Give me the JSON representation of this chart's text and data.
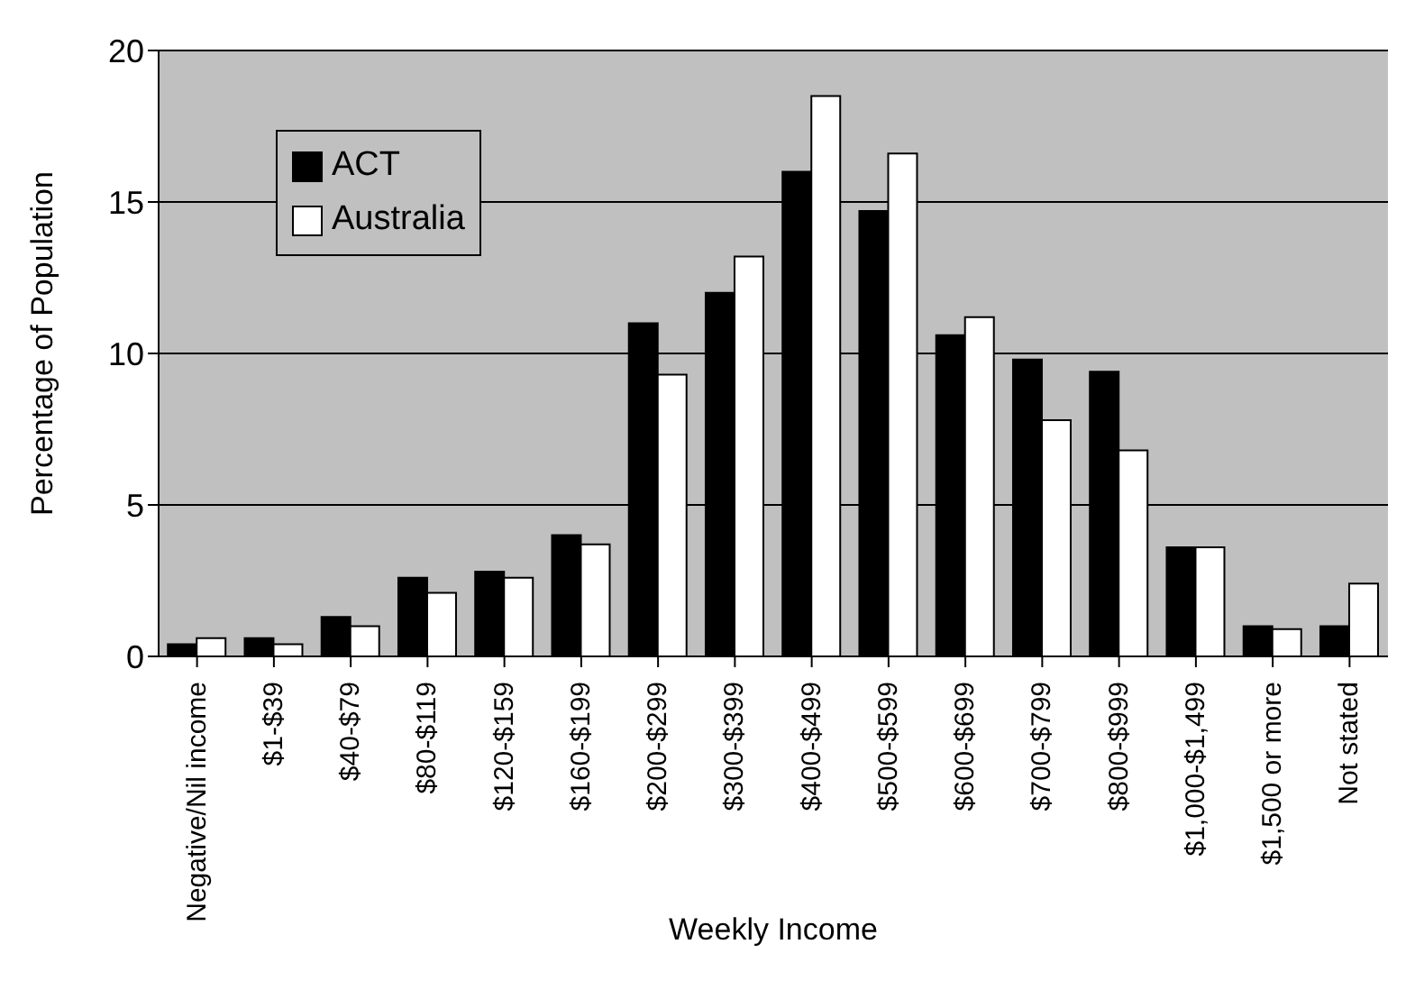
{
  "chart_data": {
    "type": "bar",
    "xlabel": "Weekly Income",
    "ylabel": "Percentage of Population",
    "categories": [
      "Negative/Nil income",
      "$1-$39",
      "$40-$79",
      "$80-$119",
      "$120-$159",
      "$160-$199",
      "$200-$299",
      "$300-$399",
      "$400-$499",
      "$500-$599",
      "$600-$699",
      "$700-$799",
      "$800-$999",
      "$1,000-$1,499",
      "$1,500 or more",
      "Not stated"
    ],
    "series": [
      {
        "name": "ACT",
        "color": "#000000",
        "values": [
          0.4,
          0.6,
          1.3,
          2.6,
          2.8,
          4.0,
          11.0,
          12.0,
          16.0,
          14.7,
          10.6,
          9.8,
          9.4,
          3.6,
          1.0,
          1.0
        ]
      },
      {
        "name": "Australia",
        "color": "#ffffff",
        "values": [
          0.6,
          0.4,
          1.0,
          2.1,
          2.6,
          3.7,
          9.3,
          13.2,
          18.5,
          16.6,
          11.2,
          7.8,
          6.8,
          3.6,
          0.9,
          2.4
        ]
      }
    ],
    "ylim": [
      0,
      20
    ],
    "yticks": [
      0,
      5,
      10,
      15,
      20
    ],
    "grid": "y",
    "legend": "top left"
  }
}
